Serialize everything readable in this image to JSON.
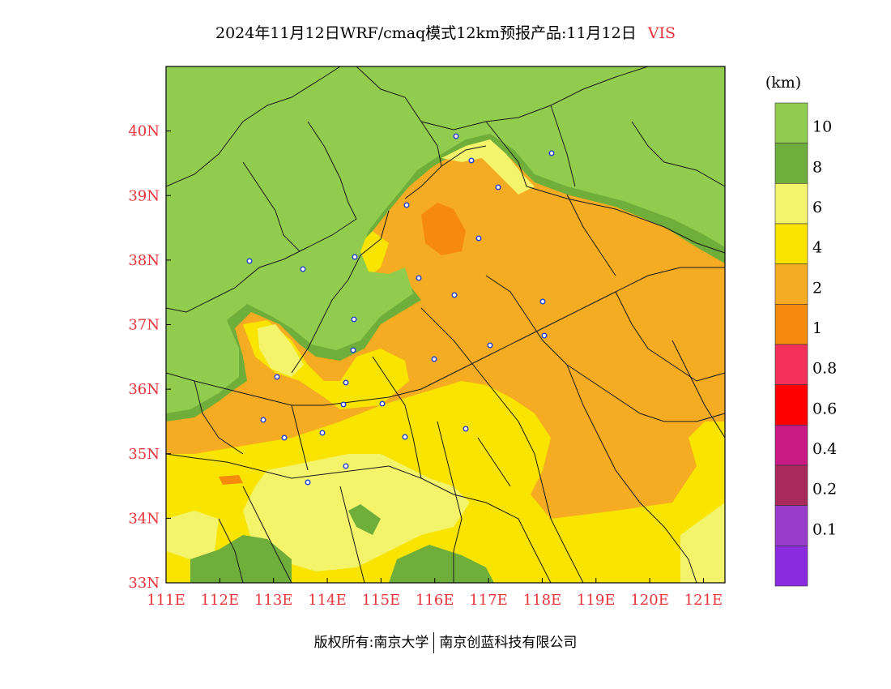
{
  "title": {
    "main": "2024年11月12日WRF/cmaq模式12km预报产品:11月12日",
    "variable": "VIS"
  },
  "map": {
    "lon_ticks": [
      "111E",
      "112E",
      "113E",
      "114E",
      "115E",
      "116E",
      "117E",
      "118E",
      "119E",
      "120E",
      "121E"
    ],
    "lat_ticks": [
      "40N",
      "39N",
      "38N",
      "37N",
      "36N",
      "35N",
      "34N",
      "33N"
    ],
    "lon_range": [
      111,
      121.4
    ],
    "lat_range": [
      33,
      41
    ],
    "colors": {
      "vis_gt10": "#92cc4f",
      "vis_8_10": "#6fae3a",
      "vis_6_8": "#f3f46c",
      "vis_4_6": "#f9e400",
      "vis_2_4": "#f5ac23",
      "vis_1_2": "#f58a0c"
    },
    "station_icon": "station-marker-icon"
  },
  "legend": {
    "unit": "(km)",
    "labels": [
      "10",
      "8",
      "6",
      "4",
      "2",
      "1",
      "0.8",
      "0.6",
      "0.4",
      "0.2",
      "0.1"
    ],
    "colors": [
      "#92cc4f",
      "#6fae3a",
      "#f3f46c",
      "#f9e400",
      "#f5ac23",
      "#f58a0c",
      "#f2305a",
      "#ff0000",
      "#c91a84",
      "#a82a5a",
      "#9a3ccb",
      "#8b2be0"
    ]
  },
  "footer": {
    "left": "版权所有:南京大学",
    "right": "南京创蓝科技有限公司"
  }
}
